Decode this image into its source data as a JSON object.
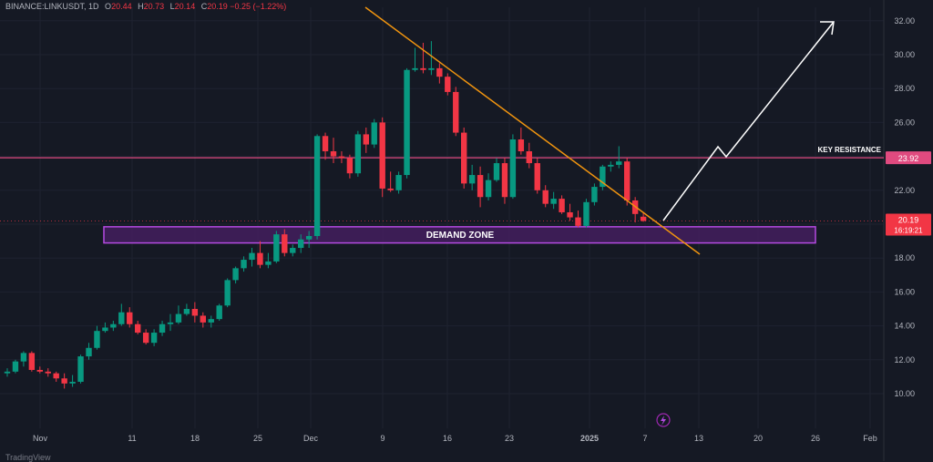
{
  "header": {
    "symbol": "BINANCE:LINKUSDT, 1D",
    "open_label": "O",
    "open": "20.44",
    "high_label": "H",
    "high": "20.73",
    "low_label": "L",
    "low": "20.14",
    "close_label": "C",
    "close": "20.19",
    "change": "−0.25 (−1.22%)"
  },
  "branding": "TradingView",
  "colors": {
    "background": "#151924",
    "grid": "#1e2230",
    "up": "#089981",
    "down": "#f23645",
    "trendline": "#f0940f",
    "resistance": "#e04a7f",
    "demand_fill": "#4a1f66",
    "demand_border": "#b44ae0",
    "arrow": "#ffffff",
    "axis_text": "#b2b5be"
  },
  "chart_data": {
    "type": "candlestick",
    "x_ticks": [
      "Nov",
      "11",
      "18",
      "25",
      "Dec",
      "9",
      "16",
      "23",
      "2025",
      "7",
      "13",
      "20",
      "26",
      "Feb"
    ],
    "y_ticks": [
      "10.00",
      "12.00",
      "14.00",
      "16.00",
      "18.00",
      "20.00",
      "22.00",
      "24.00",
      "26.00",
      "28.00",
      "30.00",
      "32.00"
    ],
    "ylim": [
      9,
      33
    ],
    "candles": [
      [
        11.2,
        11.5,
        11.0,
        11.3
      ],
      [
        11.3,
        12.0,
        11.2,
        11.9
      ],
      [
        11.9,
        12.5,
        11.6,
        12.4
      ],
      [
        12.4,
        12.5,
        11.3,
        11.4
      ],
      [
        11.4,
        11.6,
        11.2,
        11.3
      ],
      [
        11.3,
        11.5,
        11.0,
        11.2
      ],
      [
        11.2,
        11.3,
        10.7,
        10.9
      ],
      [
        10.9,
        11.2,
        10.3,
        10.6
      ],
      [
        10.6,
        11.1,
        10.4,
        10.7
      ],
      [
        10.7,
        12.3,
        10.6,
        12.2
      ],
      [
        12.2,
        13.0,
        12.0,
        12.7
      ],
      [
        12.7,
        14.0,
        12.6,
        13.7
      ],
      [
        13.7,
        14.2,
        13.6,
        13.9
      ],
      [
        13.9,
        14.3,
        13.7,
        14.1
      ],
      [
        14.1,
        15.3,
        14.0,
        14.8
      ],
      [
        14.8,
        15.1,
        13.9,
        14.1
      ],
      [
        14.1,
        14.3,
        13.5,
        13.6
      ],
      [
        13.6,
        13.8,
        12.9,
        13.0
      ],
      [
        13.0,
        13.8,
        12.8,
        13.6
      ],
      [
        13.6,
        14.3,
        13.4,
        14.1
      ],
      [
        14.1,
        14.7,
        13.7,
        14.2
      ],
      [
        14.2,
        15.2,
        14.1,
        14.7
      ],
      [
        14.7,
        15.3,
        14.6,
        15.0
      ],
      [
        15.0,
        15.4,
        14.2,
        14.6
      ],
      [
        14.6,
        14.8,
        13.9,
        14.2
      ],
      [
        14.2,
        14.6,
        13.9,
        14.4
      ],
      [
        14.4,
        15.3,
        14.3,
        15.2
      ],
      [
        15.2,
        16.8,
        15.1,
        16.7
      ],
      [
        16.7,
        17.5,
        16.5,
        17.4
      ],
      [
        17.4,
        18.1,
        17.2,
        17.9
      ],
      [
        17.9,
        18.6,
        17.5,
        18.3
      ],
      [
        18.3,
        19.0,
        17.4,
        17.6
      ],
      [
        17.6,
        18.3,
        17.4,
        17.8
      ],
      [
        17.8,
        19.6,
        17.7,
        19.4
      ],
      [
        19.4,
        19.7,
        18.1,
        18.3
      ],
      [
        18.3,
        18.8,
        18.1,
        18.6
      ],
      [
        18.6,
        19.4,
        18.3,
        19.1
      ],
      [
        19.1,
        19.6,
        18.6,
        19.3
      ],
      [
        19.3,
        25.3,
        19.1,
        25.2
      ],
      [
        25.2,
        25.4,
        23.8,
        24.3
      ],
      [
        24.3,
        25.1,
        23.6,
        24.0
      ],
      [
        24.0,
        24.3,
        23.6,
        23.9
      ],
      [
        23.9,
        24.1,
        22.7,
        23.0
      ],
      [
        23.0,
        25.5,
        22.8,
        25.3
      ],
      [
        25.3,
        25.7,
        24.2,
        24.7
      ],
      [
        24.7,
        26.2,
        24.5,
        26.0
      ],
      [
        26.0,
        26.3,
        21.6,
        22.1
      ],
      [
        22.1,
        23.1,
        21.9,
        22.0
      ],
      [
        22.0,
        23.1,
        21.8,
        22.9
      ],
      [
        22.9,
        29.2,
        22.7,
        29.1
      ],
      [
        29.1,
        30.4,
        29.0,
        29.2
      ],
      [
        29.2,
        30.7,
        28.9,
        29.1
      ],
      [
        29.1,
        30.8,
        28.8,
        29.2
      ],
      [
        29.2,
        29.5,
        28.3,
        28.7
      ],
      [
        28.7,
        28.9,
        27.6,
        27.8
      ],
      [
        27.8,
        28.1,
        25.2,
        25.4
      ],
      [
        25.4,
        25.7,
        22.1,
        22.4
      ],
      [
        22.4,
        23.5,
        22.0,
        22.9
      ],
      [
        22.9,
        23.4,
        21.0,
        21.6
      ],
      [
        21.6,
        23.0,
        21.4,
        22.6
      ],
      [
        22.6,
        23.9,
        22.5,
        23.6
      ],
      [
        23.6,
        23.9,
        21.2,
        21.6
      ],
      [
        21.6,
        25.3,
        21.5,
        25.0
      ],
      [
        25.0,
        25.7,
        24.1,
        24.3
      ],
      [
        24.3,
        24.8,
        23.3,
        23.6
      ],
      [
        23.6,
        23.9,
        21.8,
        22.0
      ],
      [
        22.0,
        22.3,
        21.0,
        21.2
      ],
      [
        21.2,
        21.9,
        20.9,
        21.5
      ],
      [
        21.5,
        21.7,
        20.6,
        20.7
      ],
      [
        20.7,
        21.2,
        20.2,
        20.4
      ],
      [
        20.4,
        20.8,
        19.8,
        19.9
      ],
      [
        19.9,
        21.5,
        19.8,
        21.3
      ],
      [
        21.3,
        22.4,
        21.1,
        22.2
      ],
      [
        22.2,
        23.5,
        22.0,
        23.4
      ],
      [
        23.4,
        23.7,
        23.1,
        23.5
      ],
      [
        23.5,
        24.6,
        23.3,
        23.7
      ],
      [
        23.7,
        23.9,
        21.1,
        21.4
      ],
      [
        21.4,
        21.6,
        20.1,
        20.6
      ],
      [
        20.44,
        20.73,
        20.14,
        20.19
      ]
    ],
    "trendline": {
      "label": "",
      "from": [
        29.8
      ],
      "to": [
        18.3
      ]
    },
    "key_resistance": {
      "label": "KEY RESISTANCE",
      "value": 23.92,
      "value_label": "23.92"
    },
    "demand_zone": {
      "label": "DEMAND ZONE",
      "top": 19.9,
      "bottom": 19.0
    },
    "last_price_label": "20.19",
    "countdown": "16:19:21",
    "projection_arrow": {
      "points": [
        [
          20.2
        ],
        [
          24.2
        ],
        [
          23.5
        ],
        [
          32.2
        ]
      ]
    }
  }
}
